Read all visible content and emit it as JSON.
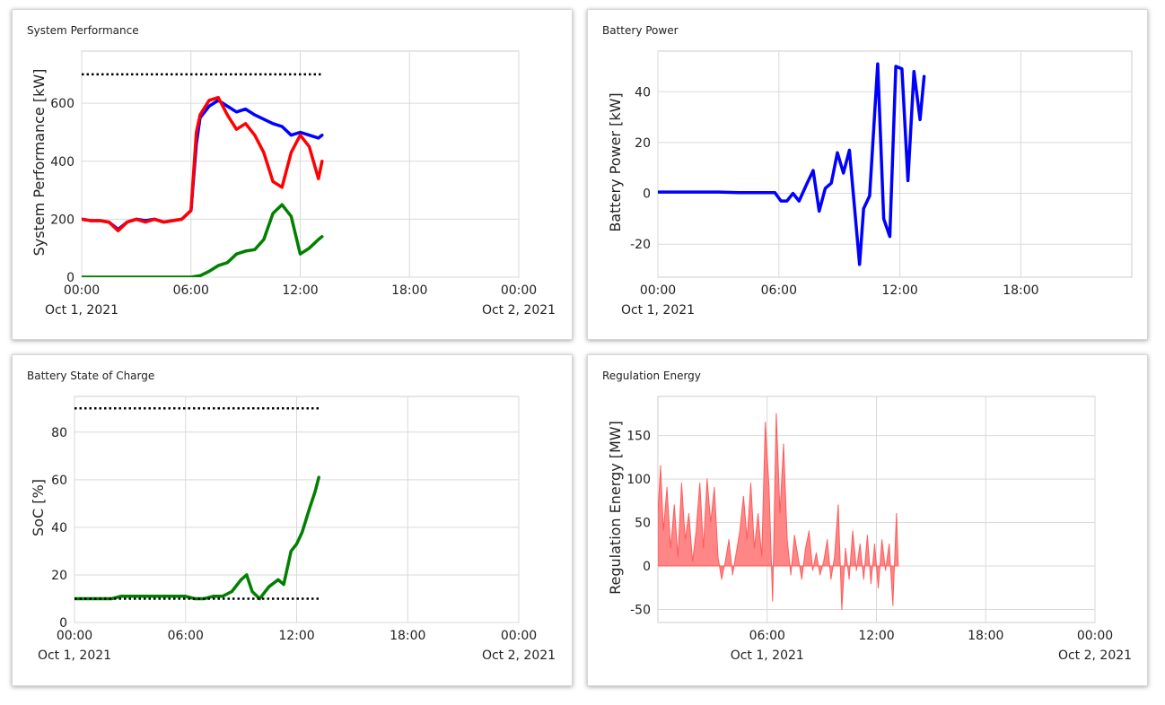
{
  "panels": {
    "system": {
      "title": "System Performance"
    },
    "battery": {
      "title": "Battery Power"
    },
    "soc": {
      "title": "Battery State of Charge"
    },
    "regulation": {
      "title": "Regulation Energy"
    }
  },
  "chart_data": [
    {
      "id": "system",
      "type": "line",
      "title": "System Performance",
      "ylabel": "System Performance [kW]",
      "xlim": [
        0,
        24
      ],
      "ylim": [
        0,
        780
      ],
      "yticks": [
        0,
        200,
        400,
        600
      ],
      "xticks": [
        {
          "value": 0,
          "label": "00:00",
          "sublabel": "Oct 1, 2021"
        },
        {
          "value": 6,
          "label": "06:00",
          "sublabel": ""
        },
        {
          "value": 12,
          "label": "12:00",
          "sublabel": ""
        },
        {
          "value": 18,
          "label": "18:00",
          "sublabel": ""
        },
        {
          "value": 24,
          "label": "00:00",
          "sublabel": "Oct 2, 2021"
        }
      ],
      "grid": true,
      "limits": [
        {
          "y": 700,
          "x0": 0,
          "x1": 13.2
        }
      ],
      "series": [
        {
          "color": "#0000ff",
          "x": [
            0,
            0.5,
            1,
            1.5,
            2,
            2.5,
            3,
            3.5,
            4,
            4.5,
            5,
            5.5,
            6,
            6.3,
            6.5,
            7,
            7.5,
            8,
            8.5,
            9,
            9.5,
            10,
            10.5,
            11,
            11.5,
            12,
            12.5,
            13,
            13.2
          ],
          "y": [
            200,
            195,
            195,
            190,
            165,
            190,
            200,
            195,
            200,
            190,
            195,
            200,
            230,
            460,
            550,
            590,
            610,
            590,
            570,
            580,
            560,
            545,
            530,
            520,
            490,
            500,
            490,
            480,
            490
          ]
        },
        {
          "color": "#ff0000",
          "x": [
            0,
            0.5,
            1,
            1.5,
            2,
            2.5,
            3,
            3.5,
            4,
            4.5,
            5,
            5.5,
            6,
            6.3,
            6.5,
            7,
            7.5,
            8,
            8.5,
            9,
            9.5,
            10,
            10.5,
            11,
            11.5,
            12,
            12.5,
            13,
            13.2
          ],
          "y": [
            200,
            195,
            195,
            190,
            160,
            190,
            200,
            190,
            200,
            190,
            195,
            200,
            230,
            500,
            560,
            610,
            620,
            560,
            510,
            530,
            490,
            430,
            330,
            310,
            430,
            490,
            450,
            340,
            400
          ]
        },
        {
          "color": "#008000",
          "x": [
            0,
            1,
            2,
            3,
            4,
            5,
            6,
            6.5,
            7,
            7.5,
            8,
            8.5,
            9,
            9.5,
            10,
            10.5,
            11,
            11.5,
            12,
            12.5,
            13,
            13.2
          ],
          "y": [
            0,
            0,
            0,
            0,
            0,
            0,
            0,
            5,
            20,
            40,
            50,
            80,
            90,
            95,
            130,
            220,
            250,
            210,
            80,
            100,
            130,
            140
          ]
        }
      ]
    },
    {
      "id": "battery",
      "type": "line",
      "title": "Battery Power",
      "ylabel": "Battery Power [kW]",
      "xlim": [
        0,
        23.5
      ],
      "ylim": [
        -33,
        56
      ],
      "yticks": [
        -20,
        0,
        20,
        40
      ],
      "xticks": [
        {
          "value": 0,
          "label": "00:00",
          "sublabel": "Oct 1, 2021"
        },
        {
          "value": 6,
          "label": "06:00",
          "sublabel": ""
        },
        {
          "value": 12,
          "label": "12:00",
          "sublabel": ""
        },
        {
          "value": 18,
          "label": "18:00",
          "sublabel": ""
        }
      ],
      "grid": true,
      "series": [
        {
          "color": "#0000ff",
          "x": [
            0,
            1,
            2,
            3,
            4,
            5,
            5.8,
            6.1,
            6.4,
            6.7,
            7,
            7.4,
            7.7,
            8,
            8.3,
            8.6,
            8.9,
            9.2,
            9.5,
            9.8,
            10,
            10.2,
            10.5,
            10.9,
            11.2,
            11.5,
            11.8,
            12.1,
            12.4,
            12.7,
            13.0,
            13.2
          ],
          "y": [
            0.5,
            0.5,
            0.5,
            0.5,
            0.3,
            0.3,
            0.3,
            -3,
            -3,
            0,
            -3,
            4,
            9,
            -7,
            2,
            4,
            16,
            8,
            17,
            -10,
            -28,
            -6,
            -1,
            51,
            -10,
            -17,
            50,
            49,
            5,
            48,
            29,
            46
          ]
        }
      ]
    },
    {
      "id": "soc",
      "type": "line",
      "title": "Battery State of Charge",
      "ylabel": "SoC [%]",
      "xlim": [
        0,
        24
      ],
      "ylim": [
        0,
        95
      ],
      "yticks": [
        0,
        20,
        40,
        60,
        80
      ],
      "xticks": [
        {
          "value": 0,
          "label": "00:00",
          "sublabel": "Oct 1, 2021"
        },
        {
          "value": 6,
          "label": "06:00",
          "sublabel": ""
        },
        {
          "value": 12,
          "label": "12:00",
          "sublabel": ""
        },
        {
          "value": 18,
          "label": "18:00",
          "sublabel": ""
        },
        {
          "value": 24,
          "label": "00:00",
          "sublabel": "Oct 2, 2021"
        }
      ],
      "grid": true,
      "limits": [
        {
          "y": 90,
          "x0": 0,
          "x1": 13.2
        },
        {
          "y": 10,
          "x0": 0,
          "x1": 13.2
        }
      ],
      "series": [
        {
          "color": "#008000",
          "x": [
            0,
            1,
            2,
            2.5,
            3,
            4,
            5,
            6,
            6.5,
            7,
            7.5,
            8,
            8.5,
            9,
            9.3,
            9.6,
            10,
            10.5,
            11,
            11.3,
            11.7,
            12,
            12.3,
            12.7,
            13.0,
            13.2
          ],
          "y": [
            10,
            10,
            10,
            11,
            11,
            11,
            11,
            11,
            10,
            10,
            11,
            11,
            13,
            18,
            20,
            13,
            10,
            15,
            18,
            16,
            30,
            33,
            38,
            48,
            55,
            61
          ]
        }
      ]
    },
    {
      "id": "regulation",
      "type": "area",
      "title": "Regulation Energy",
      "ylabel": "Regulation Energy [MW]",
      "xlim": [
        0,
        24
      ],
      "ylim": [
        -65,
        195
      ],
      "yticks": [
        -50,
        0,
        50,
        100,
        150
      ],
      "xticks": [
        {
          "value": 6,
          "label": "06:00",
          "sublabel": "Oct 1, 2021"
        },
        {
          "value": 12,
          "label": "12:00",
          "sublabel": ""
        },
        {
          "value": 18,
          "label": "18:00",
          "sublabel": ""
        },
        {
          "value": 24,
          "label": "00:00",
          "sublabel": "Oct 2, 2021"
        }
      ],
      "grid": true,
      "series": [
        {
          "color": "#ff7f7f",
          "x": [
            0,
            0.15,
            0.3,
            0.5,
            0.7,
            0.9,
            1.1,
            1.3,
            1.5,
            1.7,
            1.9,
            2.1,
            2.3,
            2.5,
            2.7,
            2.9,
            3.1,
            3.3,
            3.5,
            3.7,
            3.9,
            4.1,
            4.3,
            4.5,
            4.7,
            4.9,
            5.1,
            5.3,
            5.5,
            5.7,
            5.9,
            6.1,
            6.3,
            6.5,
            6.7,
            6.9,
            7.1,
            7.3,
            7.5,
            7.7,
            7.9,
            8.1,
            8.3,
            8.5,
            8.7,
            8.9,
            9.1,
            9.3,
            9.5,
            9.7,
            9.9,
            10.1,
            10.3,
            10.5,
            10.7,
            10.9,
            11.1,
            11.3,
            11.5,
            11.7,
            11.9,
            12.1,
            12.3,
            12.5,
            12.7,
            12.9,
            13.1,
            13.2
          ],
          "y": [
            60,
            115,
            40,
            90,
            20,
            70,
            10,
            95,
            30,
            60,
            5,
            40,
            95,
            20,
            100,
            50,
            90,
            10,
            -15,
            5,
            30,
            -10,
            15,
            40,
            80,
            30,
            95,
            20,
            60,
            10,
            165,
            90,
            -40,
            175,
            60,
            140,
            30,
            -10,
            35,
            10,
            -15,
            20,
            40,
            -5,
            15,
            -10,
            5,
            30,
            -15,
            10,
            70,
            -50,
            20,
            -15,
            40,
            -5,
            25,
            -15,
            35,
            -20,
            25,
            -25,
            30,
            -5,
            25,
            -45,
            60,
            0
          ]
        }
      ]
    }
  ]
}
